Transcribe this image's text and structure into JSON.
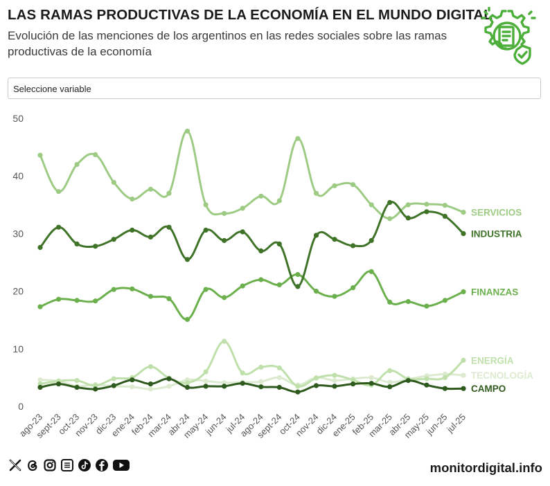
{
  "header": {
    "title": "LAS RAMAS PRODUCTIVAS DE LA ECONOMÍA EN EL MUNDO DIGITAL",
    "subtitle": "Evolución de las menciones de los argentinos en las redes sociales sobre las ramas productivas de la economía"
  },
  "selector": {
    "label": "Seleccione variable"
  },
  "chart_data": {
    "type": "line",
    "title": "",
    "xlabel": "",
    "ylabel": "",
    "ylim": [
      0,
      50
    ],
    "yticks": [
      0,
      10,
      20,
      30,
      40,
      50
    ],
    "grid": false,
    "categories": [
      "ago-23",
      "sept-23",
      "oct-23",
      "nov-23",
      "dic-23",
      "ene-24",
      "feb-24",
      "mar-24",
      "abr-24",
      "may-24",
      "jun-24",
      "jul-24",
      "ago-24",
      "sept-24",
      "oct-24",
      "nov-24",
      "dic-24",
      "ene-25",
      "feb-25",
      "mar-25",
      "abr-25",
      "may-25",
      "jun-25",
      "jul-25"
    ],
    "series": [
      {
        "name": "SERVICIOS",
        "color": "#9dcb84",
        "values": [
          43.6,
          37.3,
          42.0,
          43.7,
          38.9,
          36.0,
          37.7,
          37.0,
          47.8,
          35.0,
          33.5,
          34.4,
          36.5,
          35.7,
          46.5,
          37.0,
          38.3,
          38.5,
          35.0,
          32.6,
          35.0,
          35.1,
          34.9,
          33.7
        ]
      },
      {
        "name": "INDUSTRIA",
        "color": "#3f7328",
        "values": [
          27.6,
          31.1,
          28.2,
          27.8,
          29.0,
          30.6,
          29.4,
          31.1,
          25.5,
          30.6,
          28.8,
          30.3,
          27.0,
          28.2,
          20.8,
          29.7,
          29.0,
          27.9,
          28.8,
          35.4,
          32.7,
          33.8,
          33.0,
          30.0
        ]
      },
      {
        "name": "FINANZAS",
        "color": "#6bb04c",
        "values": [
          17.3,
          18.6,
          18.4,
          18.3,
          20.3,
          20.4,
          19.1,
          18.7,
          15.1,
          20.3,
          18.9,
          20.9,
          22.0,
          21.1,
          22.9,
          20.0,
          19.1,
          20.6,
          23.4,
          18.1,
          18.2,
          17.4,
          18.4,
          19.9
        ]
      },
      {
        "name": "ENERGÍA",
        "color": "#bfe0ab",
        "values": [
          3.9,
          4.4,
          4.5,
          3.6,
          4.8,
          5.0,
          6.9,
          4.9,
          4.1,
          6.0,
          11.3,
          5.8,
          6.8,
          6.7,
          3.5,
          4.9,
          5.4,
          4.6,
          3.7,
          6.2,
          4.8,
          4.8,
          5.0,
          8.0
        ]
      },
      {
        "name": "TECNOLOGÍA",
        "color": "#dcebd0",
        "values": [
          4.6,
          4.4,
          3.5,
          3.8,
          3.5,
          3.4,
          3.0,
          3.5,
          4.6,
          4.4,
          4.1,
          4.2,
          4.3,
          5.0,
          3.7,
          5.0,
          4.5,
          4.8,
          5.0,
          4.2,
          4.7,
          5.3,
          5.6,
          5.4
        ]
      },
      {
        "name": "CAMPO",
        "color": "#2f5a1d",
        "values": [
          3.3,
          3.9,
          3.3,
          3.0,
          3.6,
          4.6,
          3.9,
          4.8,
          3.3,
          3.5,
          3.5,
          4.0,
          3.4,
          3.3,
          2.5,
          3.6,
          3.5,
          3.9,
          4.0,
          3.4,
          4.5,
          3.7,
          3.1,
          3.1
        ]
      }
    ]
  },
  "footer": {
    "site": "monitordigital.info",
    "social_icons": [
      "x-icon",
      "threads-icon",
      "instagram-icon",
      "substack-icon",
      "tiktok-icon",
      "facebook-icon",
      "youtube-icon"
    ]
  }
}
